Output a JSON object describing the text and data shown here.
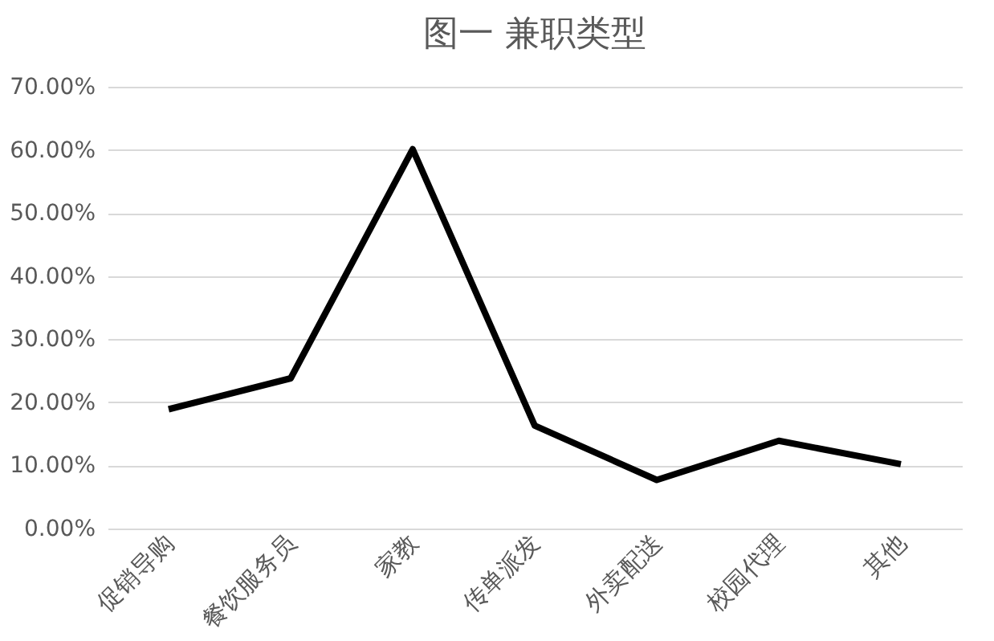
{
  "chart_data": {
    "type": "line",
    "title": "图一 兼职类型",
    "categories": [
      "促销导购",
      "餐饮服务员",
      "家教",
      "传单派发",
      "外卖配送",
      "校园代理",
      "其他"
    ],
    "series": [
      {
        "color": "#000000",
        "values": [
          18.9,
          23.8,
          60.1,
          16.3,
          7.7,
          13.9,
          10.2
        ]
      }
    ],
    "ylim": [
      0,
      70
    ],
    "yticks": [
      {
        "value": 0,
        "label": "0.00%"
      },
      {
        "value": 10,
        "label": "10.00%"
      },
      {
        "value": 20,
        "label": "20.00%"
      },
      {
        "value": 30,
        "label": "30.00%"
      },
      {
        "value": 40,
        "label": "40.00%"
      },
      {
        "value": 50,
        "label": "50.00%"
      },
      {
        "value": 60,
        "label": "60.00%"
      },
      {
        "value": 70,
        "label": "70.00%"
      }
    ],
    "grid": "y",
    "marker": "none",
    "line_style": "solid"
  }
}
